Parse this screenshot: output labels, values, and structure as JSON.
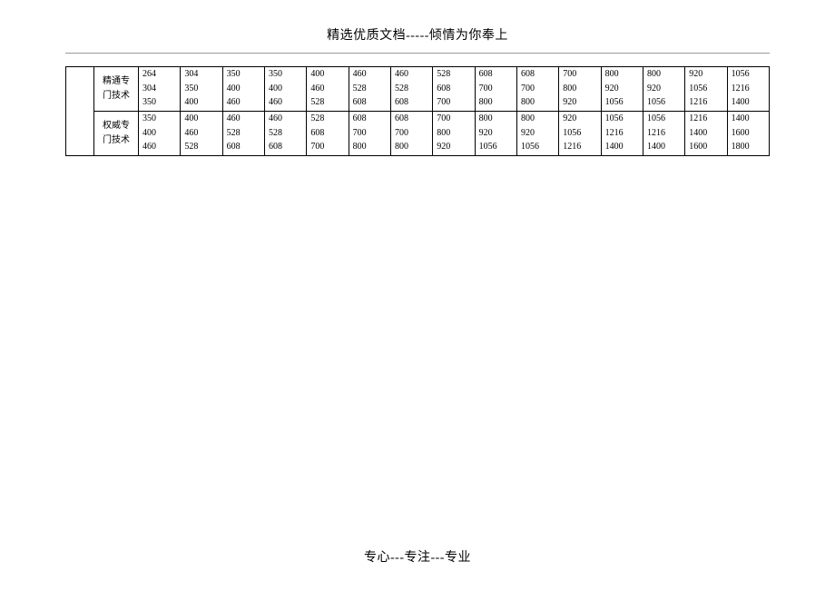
{
  "header_text": "精选优质文档-----倾情为你奉上",
  "footer_text": "专心---专注---专业",
  "table": {
    "text_color": "#000000",
    "border_color": "#000000",
    "background_color": "#ffffff",
    "font_size_pt": 8,
    "groups": [
      {
        "label": "精通专门技术",
        "rows": [
          [
            264,
            304,
            350,
            350,
            400,
            460,
            460,
            528,
            608,
            608,
            700,
            800,
            800,
            920,
            1056
          ],
          [
            304,
            350,
            400,
            400,
            460,
            528,
            528,
            608,
            700,
            700,
            800,
            920,
            920,
            1056,
            1216
          ],
          [
            350,
            400,
            460,
            460,
            528,
            608,
            608,
            700,
            800,
            800,
            920,
            1056,
            1056,
            1216,
            1400
          ]
        ]
      },
      {
        "label": "权威专门技术",
        "rows": [
          [
            350,
            400,
            460,
            460,
            528,
            608,
            608,
            700,
            800,
            800,
            920,
            1056,
            1056,
            1216,
            1400
          ],
          [
            400,
            460,
            528,
            528,
            608,
            700,
            700,
            800,
            920,
            920,
            1056,
            1216,
            1216,
            1400,
            1600
          ],
          [
            460,
            528,
            608,
            608,
            700,
            800,
            800,
            920,
            1056,
            1056,
            1216,
            1400,
            1400,
            1600,
            1800
          ]
        ]
      }
    ],
    "num_data_cols": 15
  }
}
